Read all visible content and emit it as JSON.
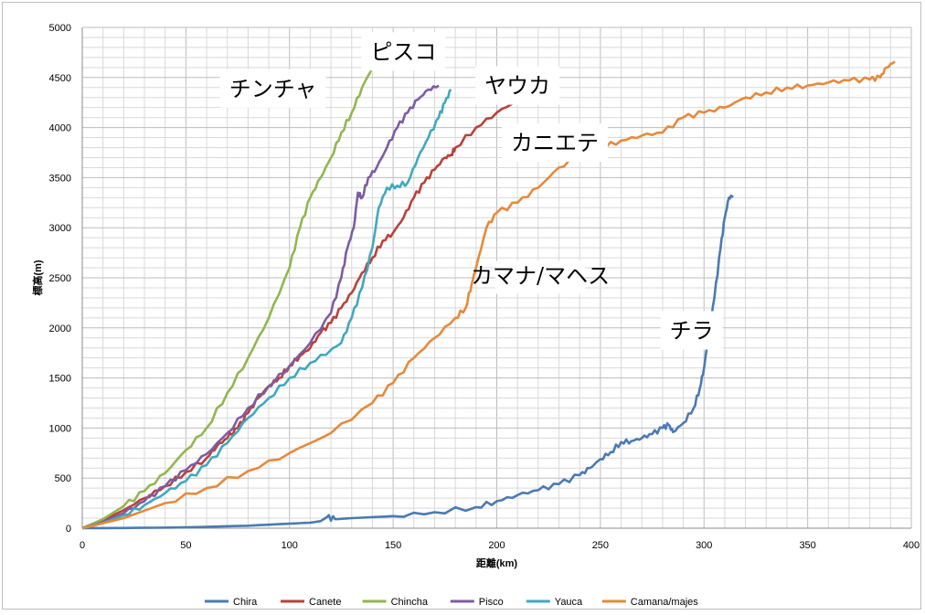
{
  "chart_data": {
    "type": "line",
    "xlabel": "距離(km)",
    "ylabel": "標高(m)",
    "xlim": [
      0,
      400
    ],
    "ylim": [
      0,
      5000
    ],
    "x_ticks": [
      "0",
      "50",
      "100",
      "150",
      "200",
      "250",
      "300",
      "350",
      "400"
    ],
    "y_ticks": [
      "0",
      "500",
      "1000",
      "1500",
      "2000",
      "2500",
      "3000",
      "3500",
      "4000",
      "4500",
      "5000"
    ],
    "grid": true,
    "legend_position": "bottom",
    "series": [
      {
        "name": "Chira",
        "color": "#4a7ab3",
        "points": [
          [
            0,
            0
          ],
          [
            20,
            2
          ],
          [
            50,
            8
          ],
          [
            80,
            25
          ],
          [
            100,
            45
          ],
          [
            110,
            55
          ],
          [
            115,
            70
          ],
          [
            118,
            110
          ],
          [
            122,
            90
          ],
          [
            130,
            100
          ],
          [
            150,
            120
          ],
          [
            170,
            160
          ],
          [
            190,
            210
          ],
          [
            200,
            270
          ],
          [
            210,
            330
          ],
          [
            220,
            380
          ],
          [
            230,
            440
          ],
          [
            240,
            530
          ],
          [
            245,
            600
          ],
          [
            250,
            690
          ],
          [
            255,
            760
          ],
          [
            260,
            860
          ],
          [
            265,
            870
          ],
          [
            270,
            900
          ],
          [
            275,
            940
          ],
          [
            280,
            1000
          ],
          [
            283,
            1030
          ],
          [
            285,
            960
          ],
          [
            290,
            1050
          ],
          [
            295,
            1200
          ],
          [
            298,
            1400
          ],
          [
            300,
            1600
          ],
          [
            302,
            1900
          ],
          [
            305,
            2300
          ],
          [
            308,
            2800
          ],
          [
            310,
            3100
          ],
          [
            312,
            3300
          ],
          [
            314,
            3320
          ]
        ]
      },
      {
        "name": "Canete",
        "color": "#b9413b",
        "points": [
          [
            0,
            0
          ],
          [
            10,
            80
          ],
          [
            20,
            180
          ],
          [
            30,
            300
          ],
          [
            40,
            420
          ],
          [
            50,
            560
          ],
          [
            60,
            700
          ],
          [
            65,
            820
          ],
          [
            70,
            900
          ],
          [
            75,
            1000
          ],
          [
            80,
            1150
          ],
          [
            85,
            1300
          ],
          [
            90,
            1420
          ],
          [
            95,
            1500
          ],
          [
            100,
            1620
          ],
          [
            105,
            1720
          ],
          [
            110,
            1800
          ],
          [
            115,
            1950
          ],
          [
            120,
            2050
          ],
          [
            125,
            2200
          ],
          [
            130,
            2350
          ],
          [
            135,
            2550
          ],
          [
            140,
            2700
          ],
          [
            145,
            2870
          ],
          [
            150,
            2950
          ],
          [
            155,
            3100
          ],
          [
            160,
            3300
          ],
          [
            165,
            3450
          ],
          [
            170,
            3580
          ],
          [
            175,
            3700
          ],
          [
            178,
            3730
          ],
          [
            180,
            3800
          ],
          [
            190,
            4000
          ],
          [
            200,
            4150
          ],
          [
            210,
            4270
          ],
          [
            215,
            4300
          ],
          [
            220,
            4370
          ]
        ]
      },
      {
        "name": "Chincha",
        "color": "#92b64f",
        "points": [
          [
            0,
            0
          ],
          [
            10,
            90
          ],
          [
            20,
            220
          ],
          [
            30,
            370
          ],
          [
            40,
            550
          ],
          [
            50,
            780
          ],
          [
            60,
            1000
          ],
          [
            70,
            1350
          ],
          [
            80,
            1700
          ],
          [
            90,
            2100
          ],
          [
            100,
            2600
          ],
          [
            105,
            3000
          ],
          [
            110,
            3300
          ],
          [
            115,
            3500
          ],
          [
            120,
            3700
          ],
          [
            125,
            3950
          ],
          [
            130,
            4150
          ],
          [
            135,
            4400
          ],
          [
            140,
            4600
          ],
          [
            142,
            4650
          ]
        ]
      },
      {
        "name": "Pisco",
        "color": "#7e5ba3",
        "points": [
          [
            0,
            0
          ],
          [
            10,
            60
          ],
          [
            20,
            150
          ],
          [
            30,
            270
          ],
          [
            40,
            420
          ],
          [
            50,
            580
          ],
          [
            60,
            740
          ],
          [
            70,
            950
          ],
          [
            80,
            1200
          ],
          [
            90,
            1420
          ],
          [
            100,
            1620
          ],
          [
            110,
            1850
          ],
          [
            120,
            2150
          ],
          [
            125,
            2500
          ],
          [
            128,
            2800
          ],
          [
            131,
            3000
          ],
          [
            133,
            3350
          ],
          [
            135,
            3300
          ],
          [
            138,
            3500
          ],
          [
            142,
            3600
          ],
          [
            147,
            3800
          ],
          [
            152,
            4000
          ],
          [
            157,
            4150
          ],
          [
            162,
            4280
          ],
          [
            167,
            4380
          ],
          [
            172,
            4420
          ]
        ]
      },
      {
        "name": "Yauca",
        "color": "#40a8bf",
        "points": [
          [
            0,
            0
          ],
          [
            10,
            50
          ],
          [
            20,
            130
          ],
          [
            30,
            230
          ],
          [
            40,
            350
          ],
          [
            50,
            470
          ],
          [
            60,
            630
          ],
          [
            70,
            850
          ],
          [
            80,
            1100
          ],
          [
            90,
            1300
          ],
          [
            100,
            1500
          ],
          [
            110,
            1650
          ],
          [
            120,
            1780
          ],
          [
            125,
            1850
          ],
          [
            130,
            2100
          ],
          [
            135,
            2400
          ],
          [
            140,
            2800
          ],
          [
            143,
            3200
          ],
          [
            147,
            3400
          ],
          [
            152,
            3420
          ],
          [
            157,
            3450
          ],
          [
            162,
            3700
          ],
          [
            167,
            3900
          ],
          [
            172,
            4100
          ],
          [
            175,
            4250
          ],
          [
            178,
            4380
          ]
        ]
      },
      {
        "name": "Camana/majes",
        "color": "#e7893a",
        "points": [
          [
            0,
            0
          ],
          [
            20,
            100
          ],
          [
            40,
            250
          ],
          [
            60,
            400
          ],
          [
            80,
            570
          ],
          [
            100,
            750
          ],
          [
            120,
            950
          ],
          [
            140,
            1250
          ],
          [
            150,
            1450
          ],
          [
            160,
            1700
          ],
          [
            170,
            1900
          ],
          [
            180,
            2100
          ],
          [
            185,
            2200
          ],
          [
            188,
            2450
          ],
          [
            190,
            2600
          ],
          [
            195,
            3000
          ],
          [
            200,
            3150
          ],
          [
            210,
            3250
          ],
          [
            220,
            3400
          ],
          [
            230,
            3600
          ],
          [
            240,
            3720
          ],
          [
            250,
            3800
          ],
          [
            260,
            3870
          ],
          [
            270,
            3920
          ],
          [
            280,
            3950
          ],
          [
            290,
            4100
          ],
          [
            300,
            4150
          ],
          [
            310,
            4200
          ],
          [
            320,
            4300
          ],
          [
            330,
            4350
          ],
          [
            340,
            4400
          ],
          [
            350,
            4420
          ],
          [
            360,
            4450
          ],
          [
            370,
            4470
          ],
          [
            380,
            4480
          ],
          [
            385,
            4500
          ],
          [
            388,
            4600
          ],
          [
            392,
            4660
          ]
        ]
      }
    ],
    "annotations": [
      {
        "text": "チンチャ",
        "x": 92,
        "y": 4390
      },
      {
        "text": "ピスコ",
        "x": 155,
        "y": 4760
      },
      {
        "text": "ヤウカ",
        "x": 210,
        "y": 4420
      },
      {
        "text": "カニエテ",
        "x": 228,
        "y": 3850
      },
      {
        "text": "カマナ/マヘス",
        "x": 221,
        "y": 2505
      },
      {
        "text": "チラ",
        "x": 294,
        "y": 1975
      }
    ]
  }
}
